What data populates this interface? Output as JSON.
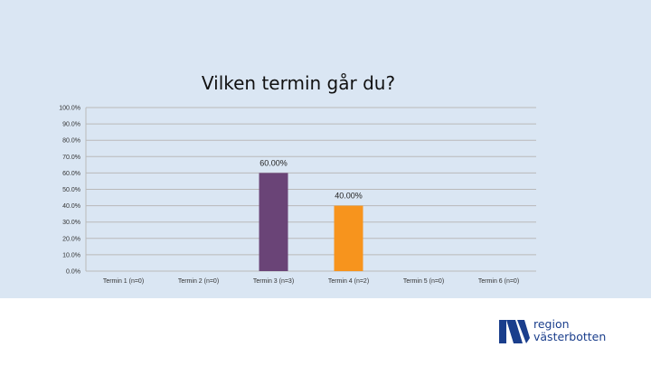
{
  "chart_data": {
    "type": "bar",
    "title": "Vilken termin går du?",
    "categories": [
      "Termin 1 (n=0)",
      "Termin 2 (n=0)",
      "Termin 3 (n=3)",
      "Termin 4 (n=2)",
      "Termin 5 (n=0)",
      "Termin 6 (n=0)"
    ],
    "values": [
      0,
      0,
      60,
      40,
      0,
      0
    ],
    "data_labels": [
      "",
      "",
      "60.00%",
      "40.00%",
      "",
      ""
    ],
    "bar_colors": [
      "#6a4477",
      "#6a4477",
      "#6a4477",
      "#f7941d",
      "#f7941d",
      "#f7941d"
    ],
    "ylim": [
      0,
      100
    ],
    "yticks": [
      "0.0%",
      "10.0%",
      "20.0%",
      "30.0%",
      "40.0%",
      "50.0%",
      "60.0%",
      "70.0%",
      "80.0%",
      "90.0%",
      "100.0%"
    ],
    "grid": true,
    "legend": "none"
  },
  "logo": {
    "line1": "region",
    "line2": "västerbotten",
    "color": "#1a3e8c"
  }
}
